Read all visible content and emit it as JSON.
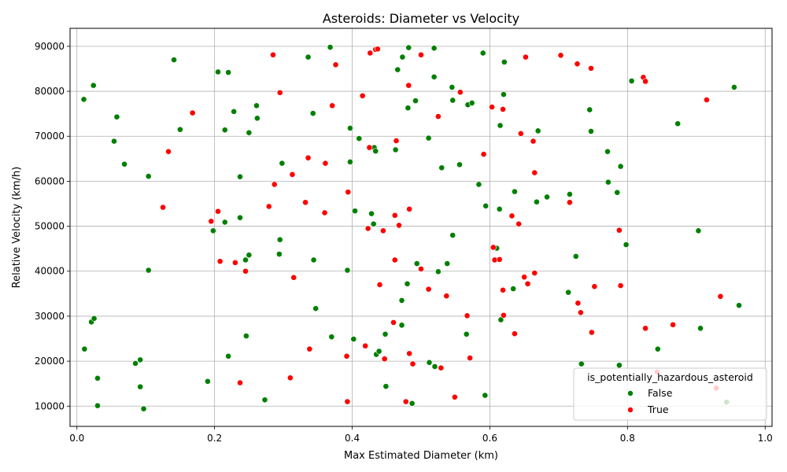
{
  "chart_data": {
    "type": "scatter",
    "title": "Asteroids: Diameter vs Velocity",
    "xlabel": "Max Estimated Diameter (km)",
    "ylabel": "Relative Velocity (km/h)",
    "xlim": [
      -0.01,
      1.01
    ],
    "ylim": [
      5500,
      94000
    ],
    "xticks": [
      0.0,
      0.2,
      0.4,
      0.6,
      0.8,
      1.0
    ],
    "xtick_labels": [
      "0.0",
      "0.2",
      "0.4",
      "0.6",
      "0.8",
      "1.0"
    ],
    "yticks": [
      10000,
      20000,
      30000,
      40000,
      50000,
      60000,
      70000,
      80000,
      90000
    ],
    "ytick_labels": [
      "10000",
      "20000",
      "30000",
      "40000",
      "50000",
      "60000",
      "70000",
      "80000",
      "90000"
    ],
    "grid": true,
    "legend": {
      "title": "is_potentially_hazardous_asteroid",
      "placement": "lower-right",
      "entries": [
        {
          "label": "False",
          "color": "#008000"
        },
        {
          "label": "True",
          "color": "#ff0000"
        }
      ]
    },
    "series": [
      {
        "name": "False",
        "color": "#008000",
        "points": [
          [
            0.01,
            78200
          ],
          [
            0.024,
            81300
          ],
          [
            0.058,
            74300
          ],
          [
            0.054,
            68900
          ],
          [
            0.069,
            63800
          ],
          [
            0.104,
            61100
          ],
          [
            0.141,
            87000
          ],
          [
            0.15,
            71500
          ],
          [
            0.104,
            40200
          ],
          [
            0.021,
            28700
          ],
          [
            0.025,
            29500
          ],
          [
            0.011,
            22700
          ],
          [
            0.03,
            16200
          ],
          [
            0.03,
            10100
          ],
          [
            0.085,
            19500
          ],
          [
            0.092,
            20300
          ],
          [
            0.092,
            14300
          ],
          [
            0.097,
            9400
          ],
          [
            0.198,
            49000
          ],
          [
            0.205,
            84300
          ],
          [
            0.22,
            84200
          ],
          [
            0.215,
            71400
          ],
          [
            0.215,
            50900
          ],
          [
            0.228,
            75500
          ],
          [
            0.237,
            61000
          ],
          [
            0.237,
            51900
          ],
          [
            0.245,
            42500
          ],
          [
            0.25,
            43600
          ],
          [
            0.25,
            70800
          ],
          [
            0.261,
            76800
          ],
          [
            0.262,
            74000
          ],
          [
            0.246,
            25600
          ],
          [
            0.22,
            21100
          ],
          [
            0.19,
            15500
          ],
          [
            0.273,
            11400
          ],
          [
            0.295,
            47000
          ],
          [
            0.294,
            43800
          ],
          [
            0.298,
            64000
          ],
          [
            0.336,
            87600
          ],
          [
            0.343,
            75100
          ],
          [
            0.344,
            42500
          ],
          [
            0.347,
            31700
          ],
          [
            0.37,
            25400
          ],
          [
            0.368,
            89800
          ],
          [
            0.397,
            71800
          ],
          [
            0.397,
            64300
          ],
          [
            0.404,
            53400
          ],
          [
            0.41,
            69500
          ],
          [
            0.393,
            40200
          ],
          [
            0.402,
            24900
          ],
          [
            0.428,
            52800
          ],
          [
            0.431,
            50500
          ],
          [
            0.432,
            67500
          ],
          [
            0.434,
            66700
          ],
          [
            0.466,
            84800
          ],
          [
            0.473,
            87600
          ],
          [
            0.482,
            89700
          ],
          [
            0.481,
            76300
          ],
          [
            0.492,
            77900
          ],
          [
            0.463,
            67000
          ],
          [
            0.435,
            21500
          ],
          [
            0.439,
            22200
          ],
          [
            0.448,
            26000
          ],
          [
            0.449,
            14400
          ],
          [
            0.472,
            33500
          ],
          [
            0.472,
            28000
          ],
          [
            0.48,
            37200
          ],
          [
            0.487,
            10600
          ],
          [
            0.494,
            41700
          ],
          [
            0.511,
            69600
          ],
          [
            0.519,
            83200
          ],
          [
            0.519,
            89600
          ],
          [
            0.53,
            63000
          ],
          [
            0.525,
            39900
          ],
          [
            0.538,
            41700
          ],
          [
            0.545,
            80900
          ],
          [
            0.546,
            78000
          ],
          [
            0.546,
            48000
          ],
          [
            0.556,
            63700
          ],
          [
            0.568,
            77000
          ],
          [
            0.574,
            77400
          ],
          [
            0.584,
            59300
          ],
          [
            0.59,
            88500
          ],
          [
            0.594,
            54500
          ],
          [
            0.566,
            26000
          ],
          [
            0.512,
            19700
          ],
          [
            0.52,
            18800
          ],
          [
            0.593,
            12400
          ],
          [
            0.61,
            45100
          ],
          [
            0.614,
            53800
          ],
          [
            0.615,
            72400
          ],
          [
            0.62,
            79300
          ],
          [
            0.621,
            86500
          ],
          [
            0.616,
            29200
          ],
          [
            0.634,
            36100
          ],
          [
            0.636,
            57700
          ],
          [
            0.668,
            55400
          ],
          [
            0.67,
            71200
          ],
          [
            0.683,
            56500
          ],
          [
            0.716,
            57100
          ],
          [
            0.725,
            43300
          ],
          [
            0.714,
            35300
          ],
          [
            0.745,
            75900
          ],
          [
            0.747,
            71100
          ],
          [
            0.733,
            19400
          ],
          [
            0.771,
            66600
          ],
          [
            0.772,
            59800
          ],
          [
            0.785,
            57500
          ],
          [
            0.79,
            63300
          ],
          [
            0.798,
            45900
          ],
          [
            0.806,
            82300
          ],
          [
            0.788,
            19100
          ],
          [
            0.844,
            22700
          ],
          [
            0.873,
            72800
          ],
          [
            0.903,
            49000
          ],
          [
            0.906,
            27300
          ],
          [
            0.944,
            10900
          ],
          [
            0.955,
            80900
          ],
          [
            0.962,
            32400
          ]
        ]
      },
      {
        "name": "True",
        "color": "#ff0000",
        "points": [
          [
            0.125,
            54200
          ],
          [
            0.133,
            66600
          ],
          [
            0.168,
            75200
          ],
          [
            0.195,
            51100
          ],
          [
            0.205,
            53300
          ],
          [
            0.208,
            42200
          ],
          [
            0.23,
            41900
          ],
          [
            0.237,
            15200
          ],
          [
            0.245,
            40000
          ],
          [
            0.279,
            54400
          ],
          [
            0.285,
            88100
          ],
          [
            0.287,
            59300
          ],
          [
            0.295,
            79700
          ],
          [
            0.31,
            16300
          ],
          [
            0.313,
            61500
          ],
          [
            0.315,
            38600
          ],
          [
            0.332,
            55300
          ],
          [
            0.336,
            65200
          ],
          [
            0.338,
            22700
          ],
          [
            0.36,
            53000
          ],
          [
            0.361,
            64000
          ],
          [
            0.371,
            76800
          ],
          [
            0.376,
            85900
          ],
          [
            0.394,
            57600
          ],
          [
            0.392,
            21100
          ],
          [
            0.393,
            11000
          ],
          [
            0.415,
            79000
          ],
          [
            0.419,
            23400
          ],
          [
            0.423,
            49500
          ],
          [
            0.425,
            67500
          ],
          [
            0.426,
            88500
          ],
          [
            0.434,
            89300
          ],
          [
            0.437,
            89400
          ],
          [
            0.44,
            37000
          ],
          [
            0.445,
            49000
          ],
          [
            0.447,
            20500
          ],
          [
            0.46,
            28600
          ],
          [
            0.462,
            52400
          ],
          [
            0.462,
            42500
          ],
          [
            0.464,
            69000
          ],
          [
            0.468,
            50200
          ],
          [
            0.478,
            11000
          ],
          [
            0.482,
            81300
          ],
          [
            0.483,
            53800
          ],
          [
            0.483,
            21700
          ],
          [
            0.488,
            19400
          ],
          [
            0.5,
            88100
          ],
          [
            0.5,
            40500
          ],
          [
            0.511,
            36000
          ],
          [
            0.525,
            74400
          ],
          [
            0.529,
            18500
          ],
          [
            0.537,
            34500
          ],
          [
            0.549,
            12000
          ],
          [
            0.557,
            79800
          ],
          [
            0.567,
            30100
          ],
          [
            0.571,
            20700
          ],
          [
            0.591,
            66000
          ],
          [
            0.603,
            76500
          ],
          [
            0.605,
            45300
          ],
          [
            0.607,
            42500
          ],
          [
            0.614,
            42600
          ],
          [
            0.619,
            76000
          ],
          [
            0.619,
            35800
          ],
          [
            0.62,
            30200
          ],
          [
            0.632,
            52300
          ],
          [
            0.636,
            26100
          ],
          [
            0.642,
            50500
          ],
          [
            0.645,
            70600
          ],
          [
            0.65,
            38700
          ],
          [
            0.655,
            37200
          ],
          [
            0.652,
            87600
          ],
          [
            0.663,
            68900
          ],
          [
            0.665,
            61900
          ],
          [
            0.665,
            39600
          ],
          [
            0.703,
            88000
          ],
          [
            0.716,
            55300
          ],
          [
            0.727,
            86100
          ],
          [
            0.728,
            32900
          ],
          [
            0.732,
            30800
          ],
          [
            0.747,
            85100
          ],
          [
            0.748,
            26400
          ],
          [
            0.752,
            36600
          ],
          [
            0.788,
            49100
          ],
          [
            0.79,
            36800
          ],
          [
            0.823,
            83100
          ],
          [
            0.826,
            82200
          ],
          [
            0.826,
            27300
          ],
          [
            0.843,
            17600
          ],
          [
            0.866,
            28100
          ],
          [
            0.915,
            78100
          ],
          [
            0.929,
            14000
          ],
          [
            0.935,
            34400
          ]
        ]
      }
    ]
  }
}
